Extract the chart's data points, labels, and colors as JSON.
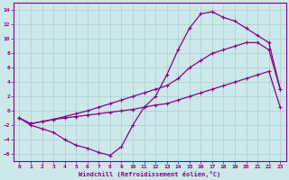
{
  "xlabel": "Windchill (Refroidissement éolien,°C)",
  "bg_color": "#cce8ea",
  "line_color": "#880088",
  "grid_color": "#aacccc",
  "xlim": [
    -0.5,
    23.5
  ],
  "ylim": [
    -7,
    15
  ],
  "xticks": [
    0,
    1,
    2,
    3,
    4,
    5,
    6,
    7,
    8,
    9,
    10,
    11,
    12,
    13,
    14,
    15,
    16,
    17,
    18,
    19,
    20,
    21,
    22,
    23
  ],
  "yticks": [
    -6,
    -4,
    -2,
    0,
    2,
    4,
    6,
    8,
    10,
    12,
    14
  ],
  "line1_x": [
    0,
    1,
    2,
    3,
    4,
    5,
    6,
    7,
    8,
    9,
    10,
    11,
    12,
    13,
    14,
    15,
    16,
    17,
    18,
    19,
    20,
    21,
    22,
    23
  ],
  "line1_y": [
    -1.0,
    -2.0,
    -2.5,
    -3.0,
    -4.0,
    -4.8,
    -5.2,
    -5.8,
    -6.2,
    -5.0,
    -2.0,
    0.5,
    2.0,
    5.0,
    8.5,
    11.5,
    13.5,
    13.8,
    13.0,
    12.5,
    11.5,
    10.5,
    9.5,
    3.0
  ],
  "line2_x": [
    0,
    1,
    2,
    3,
    4,
    5,
    6,
    7,
    8,
    9,
    10,
    11,
    12,
    13,
    14,
    15,
    16,
    17,
    18,
    19,
    20,
    21,
    22,
    23
  ],
  "line2_y": [
    -1.0,
    -1.8,
    -1.5,
    -1.2,
    -0.8,
    -0.4,
    0.0,
    0.5,
    1.0,
    1.5,
    2.0,
    2.5,
    3.0,
    3.5,
    4.5,
    6.0,
    7.0,
    8.0,
    8.5,
    9.0,
    9.5,
    9.5,
    8.5,
    3.0
  ],
  "line3_x": [
    0,
    1,
    2,
    3,
    4,
    5,
    6,
    7,
    8,
    9,
    10,
    11,
    12,
    13,
    14,
    15,
    16,
    17,
    18,
    19,
    20,
    21,
    22,
    23
  ],
  "line3_y": [
    -1.0,
    -1.8,
    -1.5,
    -1.2,
    -1.0,
    -0.8,
    -0.6,
    -0.4,
    -0.2,
    0.0,
    0.2,
    0.5,
    0.8,
    1.0,
    1.5,
    2.0,
    2.5,
    3.0,
    3.5,
    4.0,
    4.5,
    5.0,
    5.5,
    0.5
  ]
}
